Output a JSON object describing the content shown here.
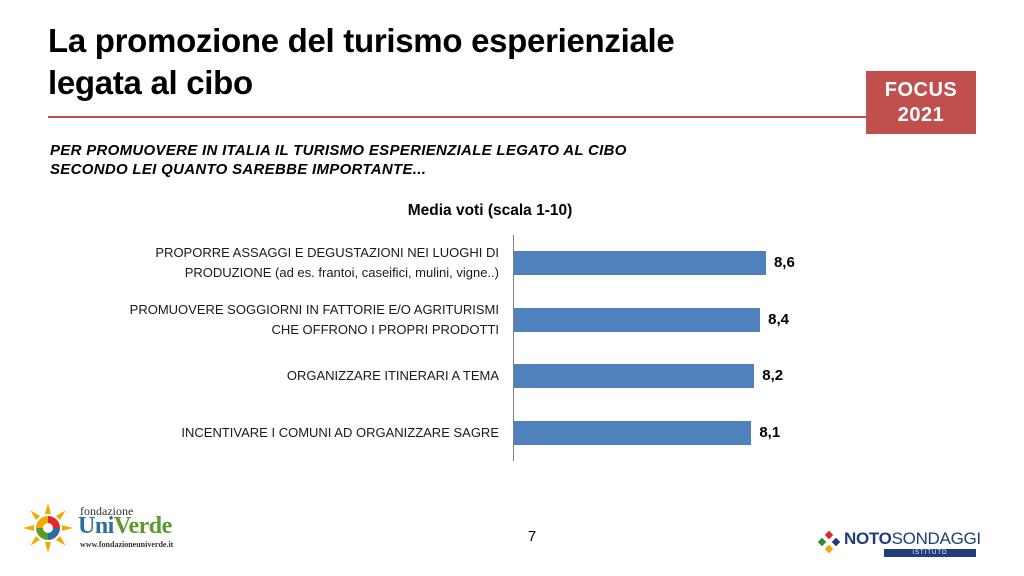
{
  "slide": {
    "title_line1": "La promozione del turismo esperienziale",
    "title_line2": "legata al cibo",
    "badge_line1": "FOCUS",
    "badge_line2": "2021",
    "question_line1": "PER PROMUOVERE IN ITALIA IL TURISMO ESPERIENZIALE LEGATO AL CIBO",
    "question_line2": "SECONDO LEI QUANTO SAREBBE IMPORTANTE...",
    "page_number": "7",
    "logo_left": {
      "small": "fondazione",
      "big_a": "Uni",
      "big_b": "Verde",
      "url": "www.fondazioneuniverde.it"
    },
    "logo_right": {
      "a": "NOTO",
      "b": "SONDAGGI",
      "sub": "ISTITUTO DEMOSCOPICO"
    }
  },
  "colors": {
    "accent": "#c0504d",
    "bar": "#4f81bd"
  },
  "chart_data": {
    "type": "bar",
    "orientation": "horizontal",
    "title": "Media voti (scala 1-10)",
    "categories": [
      [
        "PROPORRE ASSAGGI E DEGUSTAZIONI NEI LUOGHI DI",
        "PRODUZIONE (ad es. frantoi, caseifici, mulini, vigne..)"
      ],
      [
        "PROMUOVERE SOGGIORNI IN FATTORIE E/O AGRITURISMI",
        "CHE OFFRONO I PROPRI PRODOTTI"
      ],
      [
        "ORGANIZZARE ITINERARI A TEMA"
      ],
      [
        "INCENTIVARE I COMUNI AD ORGANIZZARE SAGRE"
      ]
    ],
    "values": [
      8.6,
      8.4,
      8.2,
      8.1
    ],
    "value_labels": [
      "8,6",
      "8,4",
      "8,2",
      "8,1"
    ],
    "xlim": [
      0,
      10
    ]
  }
}
